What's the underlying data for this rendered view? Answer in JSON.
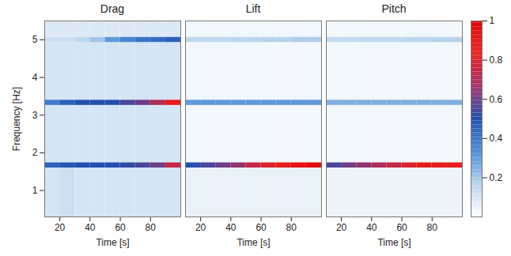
{
  "chart_data": {
    "type": "heatmap",
    "xlabel": "Time [s]",
    "ylabel": "Frequency [Hz]",
    "xlim": [
      10,
      100
    ],
    "xticks": [
      20,
      40,
      60,
      80
    ],
    "ylim": [
      0.3,
      5.5
    ],
    "yticks": [
      1,
      2,
      3,
      4,
      5
    ],
    "x_edges": [
      10,
      20,
      30,
      40,
      50,
      60,
      70,
      80,
      90,
      100
    ],
    "y_edges": [
      0.3,
      1.6,
      1.74,
      3.26,
      3.4,
      4.93,
      5.07,
      5.5
    ],
    "panels": [
      {
        "title": "Drag",
        "cells": [
          [
            0.1,
            0.12,
            0.1,
            0.1,
            0.1,
            0.1,
            0.1,
            0.1,
            0.1
          ],
          [
            0.45,
            0.48,
            0.5,
            0.5,
            0.5,
            0.52,
            0.55,
            0.6,
            0.75
          ],
          [
            0.1,
            0.1,
            0.1,
            0.1,
            0.1,
            0.1,
            0.1,
            0.1,
            0.1
          ],
          [
            0.38,
            0.45,
            0.5,
            0.5,
            0.5,
            0.55,
            0.6,
            0.7,
            0.85
          ],
          [
            0.1,
            0.1,
            0.1,
            0.1,
            0.1,
            0.1,
            0.1,
            0.1,
            0.1
          ],
          [
            0.12,
            0.12,
            0.15,
            0.2,
            0.3,
            0.35,
            0.4,
            0.42,
            0.45
          ],
          [
            0.08,
            0.08,
            0.08,
            0.08,
            0.08,
            0.08,
            0.08,
            0.08,
            0.08
          ]
        ]
      },
      {
        "title": "Lift",
        "cells": [
          [
            0.05,
            0.05,
            0.05,
            0.05,
            0.05,
            0.05,
            0.05,
            0.05,
            0.05
          ],
          [
            0.5,
            0.55,
            0.6,
            0.65,
            0.75,
            0.8,
            0.85,
            0.9,
            0.95
          ],
          [
            0.03,
            0.03,
            0.03,
            0.03,
            0.03,
            0.03,
            0.03,
            0.03,
            0.03
          ],
          [
            0.3,
            0.3,
            0.3,
            0.3,
            0.3,
            0.3,
            0.3,
            0.3,
            0.3
          ],
          [
            0.03,
            0.03,
            0.03,
            0.03,
            0.03,
            0.03,
            0.03,
            0.03,
            0.03
          ],
          [
            0.15,
            0.15,
            0.15,
            0.16,
            0.16,
            0.17,
            0.17,
            0.18,
            0.18
          ],
          [
            0.03,
            0.03,
            0.03,
            0.03,
            0.03,
            0.03,
            0.03,
            0.03,
            0.03
          ]
        ]
      },
      {
        "title": "Pitch",
        "cells": [
          [
            0.04,
            0.04,
            0.04,
            0.04,
            0.04,
            0.04,
            0.04,
            0.04,
            0.04
          ],
          [
            0.55,
            0.6,
            0.65,
            0.7,
            0.75,
            0.8,
            0.85,
            0.85,
            0.85
          ],
          [
            0.03,
            0.03,
            0.03,
            0.03,
            0.03,
            0.03,
            0.03,
            0.03,
            0.03
          ],
          [
            0.25,
            0.25,
            0.25,
            0.25,
            0.25,
            0.25,
            0.25,
            0.25,
            0.25
          ],
          [
            0.03,
            0.03,
            0.03,
            0.03,
            0.03,
            0.03,
            0.03,
            0.03,
            0.03
          ],
          [
            0.14,
            0.14,
            0.15,
            0.15,
            0.15,
            0.16,
            0.16,
            0.17,
            0.17
          ],
          [
            0.03,
            0.03,
            0.03,
            0.03,
            0.03,
            0.03,
            0.03,
            0.03,
            0.03
          ]
        ]
      }
    ],
    "colorbar": {
      "range": [
        0,
        1
      ],
      "ticks": [
        0.2,
        0.4,
        0.6,
        0.8,
        1
      ],
      "colors": [
        "#ffffff",
        "#b8d3ec",
        "#4a8ad6",
        "#2250b0",
        "#a0306a",
        "#e8201e",
        "#e00000"
      ]
    }
  }
}
